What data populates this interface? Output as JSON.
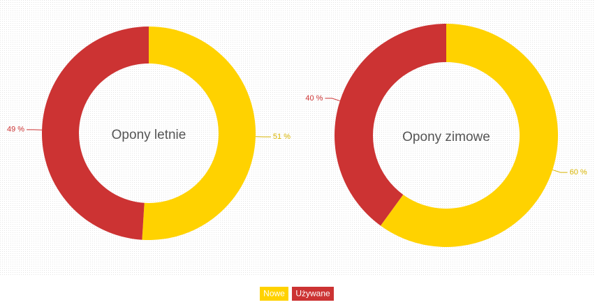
{
  "chart_data": [
    {
      "type": "pie",
      "title": "Opony letnie",
      "values": [
        51,
        49
      ],
      "value_labels": [
        "51 %",
        "49 %"
      ]
    },
    {
      "type": "pie",
      "title": "Opony zimowe",
      "values": [
        60,
        40
      ],
      "value_labels": [
        "60 %",
        "40 %"
      ]
    }
  ],
  "legend": {
    "labels": [
      "Nowe",
      "Używane"
    ],
    "colors": [
      "#ffd200",
      "#cc3333"
    ],
    "position": "bottom"
  }
}
